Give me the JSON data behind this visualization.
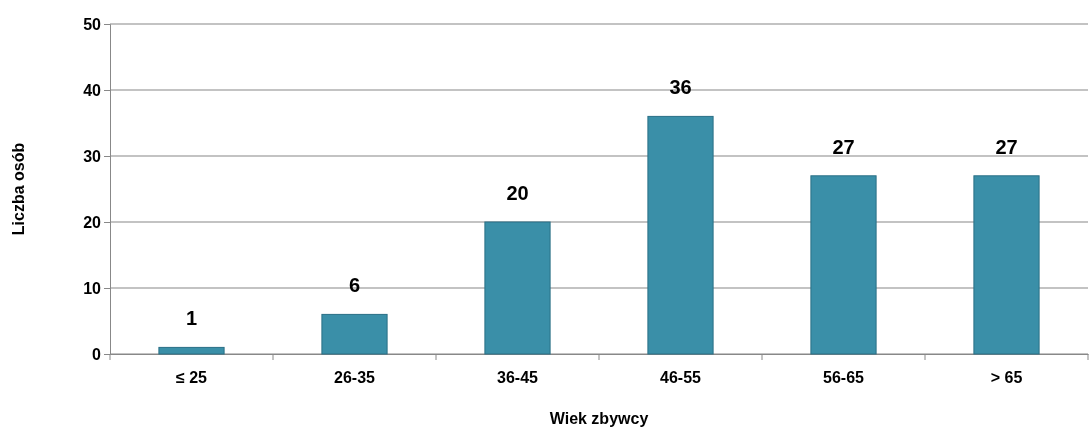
{
  "chart_data": {
    "type": "bar",
    "xlabel": "Wiek zbywcy",
    "ylabel": "Liczba osób",
    "categories": [
      "≤ 25",
      "26-35",
      "36-45",
      "46-55",
      "56-65",
      "> 65"
    ],
    "values": [
      1,
      6,
      20,
      36,
      27,
      27
    ],
    "color": "#3a8fa8",
    "ylim": [
      0,
      50
    ],
    "yticks": [
      0,
      10,
      20,
      30,
      40,
      50
    ],
    "grid": "y",
    "data_labels": true
  }
}
